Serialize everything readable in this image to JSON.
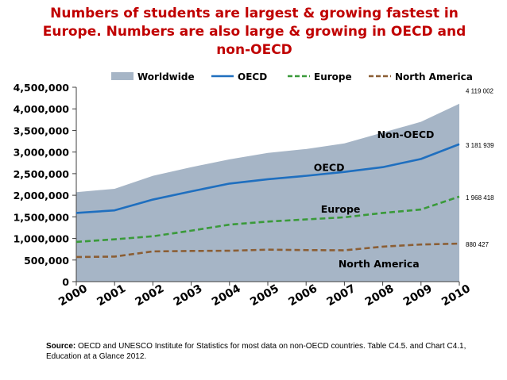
{
  "chart_data": {
    "type": "area+line",
    "title_lines": [
      "Numbers of students are largest & growing fastest in",
      "Europe. Numbers are also large & growing in OECD and",
      "non-OECD"
    ],
    "x": [
      "2000",
      "2001",
      "2002",
      "2003",
      "2004",
      "2005",
      "2006",
      "2007",
      "2008",
      "2009",
      "2010"
    ],
    "ylim": [
      0,
      4500000
    ],
    "y_ticks": [
      {
        "value": 0,
        "label": "0"
      },
      {
        "value": 500000,
        "label": "500,000"
      },
      {
        "value": 1000000,
        "label": "1,000,000"
      },
      {
        "value": 1500000,
        "label": "1,500,000"
      },
      {
        "value": 2000000,
        "label": "2,000,000"
      },
      {
        "value": 2500000,
        "label": "2,500,000"
      },
      {
        "value": 3000000,
        "label": "3,000,000"
      },
      {
        "value": 3500000,
        "label": "3,500,000"
      },
      {
        "value": 4000000,
        "label": "4,000,000"
      },
      {
        "value": 4500000,
        "label": "4,500,000"
      }
    ],
    "legend_position": "top",
    "series": [
      {
        "name": "Worldwide",
        "kind": "area",
        "color": "#a6b5c6",
        "values": [
          2070000,
          2150000,
          2450000,
          2650000,
          2830000,
          2980000,
          3070000,
          3200000,
          3450000,
          3700000,
          4119002
        ],
        "end_label": "4 119 002",
        "inline_label": "Non-OECD",
        "inline_at": 2008.6,
        "inline_value": 3320000
      },
      {
        "name": "OECD",
        "kind": "line",
        "color": "#1f6fbf",
        "values": [
          1590000,
          1650000,
          1900000,
          2090000,
          2270000,
          2370000,
          2450000,
          2540000,
          2650000,
          2840000,
          3181939
        ],
        "end_label": "3 181 939",
        "inline_label": "OECD",
        "inline_at": 2006.6,
        "inline_value": 2560000
      },
      {
        "name": "Europe",
        "kind": "dashed",
        "color": "#3a9a3a",
        "values": [
          920000,
          980000,
          1050000,
          1180000,
          1320000,
          1390000,
          1440000,
          1490000,
          1590000,
          1670000,
          1968418
        ],
        "end_label": "1 968 418",
        "inline_label": "Europe",
        "inline_at": 2006.9,
        "inline_value": 1600000
      },
      {
        "name": "North America",
        "kind": "dashed",
        "color": "#8b5e34",
        "values": [
          570000,
          580000,
          700000,
          710000,
          715000,
          740000,
          730000,
          725000,
          810000,
          860000,
          880427
        ],
        "end_label": "880 427",
        "inline_label": "North America",
        "inline_at": 2007.9,
        "inline_value": 330000
      }
    ],
    "source_bold": "Source:",
    "source_text": " OECD and UNESCO Institute for Statistics for most data on non-OECD countries. Table C4.5. and Chart C4.1, Education at a Glance 2012."
  }
}
